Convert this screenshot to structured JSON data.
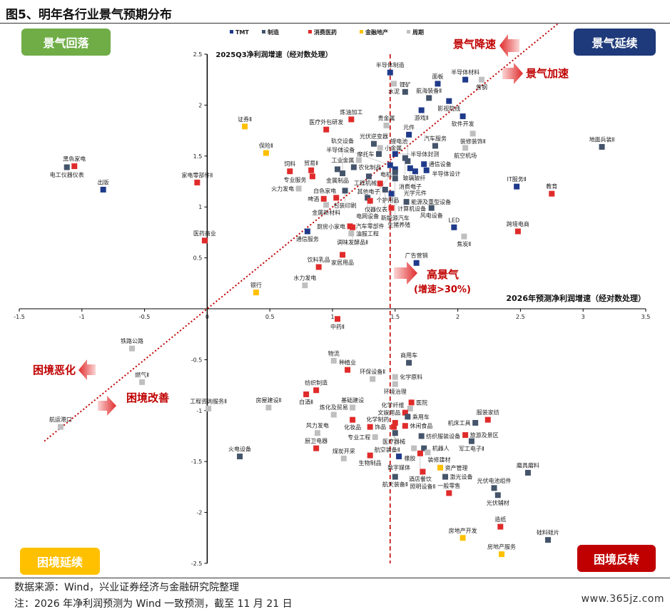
{
  "title": "图5、明年各行业景气预期分布",
  "quadrants": {
    "top_left": {
      "label": "景气回落",
      "color": "#70ad47"
    },
    "top_right": {
      "label": "景气延续",
      "color": "#1f3a7a"
    },
    "bottom_left": {
      "label": "困境延续",
      "color": "#ffc000"
    },
    "bottom_right": {
      "label": "困境反转",
      "color": "#c00000"
    }
  },
  "annotations": {
    "slow": "景气降速",
    "fast": "景气加速",
    "worse": "困境恶化",
    "better": "困境改善",
    "high": "高景气",
    "high_sub": "(增速>30%)"
  },
  "footer": {
    "source": "数据来源：Wind，兴业证券经济与金融研究院整理",
    "note": "注：2026 年净利润预测为 Wind 一致预测，截至 11 月 21 日"
  },
  "watermark": "www.365jz.com",
  "chart_data": {
    "type": "scatter",
    "xlabel": "2026年预测净利润增速（经对数处理）",
    "ylabel": "2025Q3净利润增速（经对数处理）",
    "xlim": [
      -1.5,
      3.5
    ],
    "ylim": [
      -2.5,
      2.5
    ],
    "xticks": [
      "-1.5",
      "-1",
      "-0.5",
      "0",
      "0.5",
      "1",
      "1.5",
      "2",
      "2.5",
      "3",
      "3.5"
    ],
    "yticks": [
      "2.5",
      "2",
      "1.5",
      "1",
      "0.5",
      "0",
      "-0.5",
      "-1",
      "-1.5",
      "-2",
      "-2.5"
    ],
    "reference_lines": {
      "vertical_x": 1.46,
      "diagonal": "y=x"
    },
    "grid": false,
    "legend_position": "top",
    "categories": [
      {
        "key": "tmt",
        "name": "TMT",
        "color": "#1f3a8a"
      },
      {
        "key": "mfg",
        "name": "制造",
        "color": "#44546a"
      },
      {
        "key": "con",
        "name": "消费医药",
        "color": "#e02b2b"
      },
      {
        "key": "fin",
        "name": "金融地产",
        "color": "#ffc000"
      },
      {
        "key": "cyc",
        "name": "周期",
        "color": "#bfbfbf"
      }
    ],
    "points": [
      {
        "n": "半导体制造",
        "c": "tmt",
        "x": 1.46,
        "y": 2.32
      },
      {
        "n": "水泥",
        "c": "cyc",
        "x": 1.49,
        "y": 2.21
      },
      {
        "n": "锂矿",
        "c": "mfg",
        "x": 1.58,
        "y": 2.13
      },
      {
        "n": "航海装备Ⅱ",
        "c": "mfg",
        "x": 1.77,
        "y": 2.07
      },
      {
        "n": "影视院线",
        "c": "tmt",
        "x": 1.93,
        "y": 2.04
      },
      {
        "n": "面板",
        "c": "tmt",
        "x": 1.84,
        "y": 2.21
      },
      {
        "n": "半导体材料",
        "c": "tmt",
        "x": 2.06,
        "y": 2.25
      },
      {
        "n": "普钢",
        "c": "cyc",
        "x": 2.19,
        "y": 2.25
      },
      {
        "n": "游戏Ⅱ",
        "c": "tmt",
        "x": 1.71,
        "y": 1.95
      },
      {
        "n": "软件开发",
        "c": "tmt",
        "x": 2.04,
        "y": 1.89
      },
      {
        "n": "贵金属",
        "c": "cyc",
        "x": 1.43,
        "y": 1.8
      },
      {
        "n": "炼油加工",
        "c": "con",
        "x": 1.15,
        "y": 1.86
      },
      {
        "n": "医疗外包研发",
        "c": "con",
        "x": 0.95,
        "y": 1.76
      },
      {
        "n": "元件",
        "c": "tmt",
        "x": 1.61,
        "y": 1.71
      },
      {
        "n": "装修装饰Ⅱ",
        "c": "cyc",
        "x": 2.12,
        "y": 1.72
      },
      {
        "n": "航空机场",
        "c": "cyc",
        "x": 2.06,
        "y": 1.58
      },
      {
        "n": "汽车服务",
        "c": "mfg",
        "x": 1.82,
        "y": 1.6
      },
      {
        "n": "光伏逆变器",
        "c": "mfg",
        "x": 1.33,
        "y": 1.62
      },
      {
        "n": "小金属",
        "c": "cyc",
        "x": 1.38,
        "y": 1.58
      },
      {
        "n": "摩托车",
        "c": "mfg",
        "x": 1.37,
        "y": 1.52
      },
      {
        "n": "半导体封测",
        "c": "tmt",
        "x": 1.5,
        "y": 1.52
      },
      {
        "n": "玻璃玻纤",
        "c": "mfg",
        "x": 1.58,
        "y": 1.48
      },
      {
        "n": "锂电池",
        "c": "mfg",
        "x": 1.6,
        "y": 1.45
      },
      {
        "n": "通信设备",
        "c": "tmt",
        "x": 1.73,
        "y": 1.42
      },
      {
        "n": "半导体设计",
        "c": "tmt",
        "x": 1.75,
        "y": 1.36
      },
      {
        "n": "消费电子",
        "c": "tmt",
        "x": 1.62,
        "y": 1.38
      },
      {
        "n": "光学元件",
        "c": "tmt",
        "x": 1.66,
        "y": 1.35
      },
      {
        "n": "工业金属",
        "c": "cyc",
        "x": 1.21,
        "y": 1.46
      },
      {
        "n": "金属制品",
        "c": "mfg",
        "x": 1.04,
        "y": 1.37
      },
      {
        "n": "农化制品",
        "c": "mfg",
        "x": 1.17,
        "y": 1.39
      },
      {
        "n": "半导体设备",
        "c": "tmt",
        "x": 1.46,
        "y": 1.41
      },
      {
        "n": "其他电子",
        "c": "tmt",
        "x": 1.5,
        "y": 1.37
      },
      {
        "n": "电机",
        "c": "mfg",
        "x": 1.5,
        "y": 1.34
      },
      {
        "n": "工程机械",
        "c": "mfg",
        "x": 1.29,
        "y": 1.3
      },
      {
        "n": "个护用品",
        "c": "con",
        "x": 1.38,
        "y": 1.23
      },
      {
        "n": "仪器仪表",
        "c": "mfg",
        "x": 1.42,
        "y": 1.17
      },
      {
        "n": "计算机设备",
        "c": "tmt",
        "x": 1.47,
        "y": 1.13
      },
      {
        "n": "新能源汽车",
        "c": "mfg",
        "x": 1.5,
        "y": 1.28
      },
      {
        "n": "白色家电",
        "c": "con",
        "x": 1.03,
        "y": 1.09
      },
      {
        "n": "啤酒",
        "c": "con",
        "x": 0.93,
        "y": 1.08
      },
      {
        "n": "电网设备",
        "c": "mfg",
        "x": 1.28,
        "y": 1.09
      },
      {
        "n": "包装印刷",
        "c": "mfg",
        "x": 1.1,
        "y": 1.16
      },
      {
        "n": "汽车零部件",
        "c": "con",
        "x": 1.3,
        "y": 1.06
      },
      {
        "n": "金属新材料",
        "c": "cyc",
        "x": 0.95,
        "y": 1.02
      },
      {
        "n": "火力发电",
        "c": "cyc",
        "x": 0.73,
        "y": 1.18
      },
      {
        "n": "专业服务",
        "c": "con",
        "x": 0.84,
        "y": 1.3
      },
      {
        "n": "贸易Ⅱ",
        "c": "con",
        "x": 0.83,
        "y": 1.36
      },
      {
        "n": "饲料",
        "c": "con",
        "x": 0.66,
        "y": 1.35
      },
      {
        "n": "轨交设备",
        "c": "mfg",
        "x": 1.08,
        "y": 1.33
      },
      {
        "n": "保险Ⅱ",
        "c": "fin",
        "x": 0.47,
        "y": 1.53
      },
      {
        "n": "生猪养殖",
        "c": "con",
        "x": 1.47,
        "y": 0.99
      },
      {
        "n": "能源及重型设备",
        "c": "mfg",
        "x": 1.59,
        "y": 1.05
      },
      {
        "n": "风电设备",
        "c": "mfg",
        "x": 1.79,
        "y": 0.99
      },
      {
        "n": "LED",
        "c": "tmt",
        "x": 1.97,
        "y": 0.8
      },
      {
        "n": "焦炭Ⅱ",
        "c": "cyc",
        "x": 2.05,
        "y": 0.71
      },
      {
        "n": "厨房小家电",
        "c": "con",
        "x": 1.14,
        "y": 0.81
      },
      {
        "n": "调味发酵品Ⅱ",
        "c": "con",
        "x": 1.16,
        "y": 0.8
      },
      {
        "n": "油服工程",
        "c": "cyc",
        "x": 1.15,
        "y": 0.74
      },
      {
        "n": "通信服务",
        "c": "tmt",
        "x": 0.8,
        "y": 0.76
      },
      {
        "n": "家居用品",
        "c": "con",
        "x": 1.08,
        "y": 0.53
      },
      {
        "n": "饮料乳品",
        "c": "con",
        "x": 0.89,
        "y": 0.41
      },
      {
        "n": "水力发电",
        "c": "cyc",
        "x": 0.78,
        "y": 0.23
      },
      {
        "n": "广告营销",
        "c": "tmt",
        "x": 1.67,
        "y": 0.45
      },
      {
        "n": "跨境电商",
        "c": "con",
        "x": 2.48,
        "y": 0.76
      },
      {
        "n": "教育",
        "c": "con",
        "x": 2.75,
        "y": 1.13
      },
      {
        "n": "IT服务Ⅱ",
        "c": "tmt",
        "x": 2.47,
        "y": 1.2
      },
      {
        "n": "地面兵装Ⅱ",
        "c": "mfg",
        "x": 3.15,
        "y": 1.59
      },
      {
        "n": "证券Ⅱ",
        "c": "fin",
        "x": 0.3,
        "y": 1.79
      },
      {
        "n": "银行",
        "c": "fin",
        "x": 0.39,
        "y": 0.16
      },
      {
        "n": "医药商业",
        "c": "con",
        "x": -0.02,
        "y": 0.67
      },
      {
        "n": "家电零部件Ⅱ",
        "c": "con",
        "x": -0.08,
        "y": 1.24
      },
      {
        "n": "黑色家电",
        "c": "con",
        "x": -1.06,
        "y": 1.4
      },
      {
        "n": "电工仪器仪表",
        "c": "mfg",
        "x": -1.12,
        "y": 1.39
      },
      {
        "n": "出版",
        "c": "tmt",
        "x": -0.83,
        "y": 1.17
      },
      {
        "n": "中药Ⅱ",
        "c": "con",
        "x": 1.04,
        "y": -0.1
      },
      {
        "n": "物流",
        "c": "cyc",
        "x": 1.01,
        "y": -0.51
      },
      {
        "n": "种植业",
        "c": "con",
        "x": 1.12,
        "y": -0.6
      },
      {
        "n": "环保设备Ⅱ",
        "c": "cyc",
        "x": 1.32,
        "y": -0.69
      },
      {
        "n": "商用车",
        "c": "mfg",
        "x": 1.61,
        "y": -0.53
      },
      {
        "n": "化学原料",
        "c": "cyc",
        "x": 1.5,
        "y": -0.67
      },
      {
        "n": "环境治理",
        "c": "cyc",
        "x": 1.5,
        "y": -0.74
      },
      {
        "n": "纺织制造",
        "c": "con",
        "x": 0.87,
        "y": -0.8
      },
      {
        "n": "白酒Ⅱ",
        "c": "con",
        "x": 0.79,
        "y": -0.84
      },
      {
        "n": "基础建设",
        "c": "cyc",
        "x": 1.16,
        "y": -0.97
      },
      {
        "n": "炼化及贸易",
        "c": "cyc",
        "x": 1.01,
        "y": -1.04
      },
      {
        "n": "医院",
        "c": "con",
        "x": 1.63,
        "y": -0.92
      },
      {
        "n": "化学纤维",
        "c": "cyc",
        "x": 1.62,
        "y": -0.98
      },
      {
        "n": "文娱用品",
        "c": "con",
        "x": 1.58,
        "y": -1.02
      },
      {
        "n": "乘用车",
        "c": "mfg",
        "x": 1.6,
        "y": -1.06
      },
      {
        "n": "化学制药",
        "c": "con",
        "x": 1.5,
        "y": -1.12
      },
      {
        "n": "化妆品",
        "c": "con",
        "x": 1.16,
        "y": -1.09
      },
      {
        "n": "饰品",
        "c": "con",
        "x": 1.3,
        "y": -1.16
      },
      {
        "n": "医疗器械",
        "c": "con",
        "x": 1.49,
        "y": -1.16
      },
      {
        "n": "休闲食品",
        "c": "con",
        "x": 1.58,
        "y": -1.15
      },
      {
        "n": "风力发电",
        "c": "cyc",
        "x": 0.88,
        "y": -1.22
      },
      {
        "n": "服装家纺",
        "c": "con",
        "x": 2.24,
        "y": -1.09
      },
      {
        "n": "机床工具",
        "c": "mfg",
        "x": 2.14,
        "y": -1.12
      },
      {
        "n": "旅游及景区",
        "c": "con",
        "x": 2.06,
        "y": -1.24
      },
      {
        "n": "军工电子Ⅱ",
        "c": "mfg",
        "x": 2.11,
        "y": -1.3
      },
      {
        "n": "航空装备Ⅱ",
        "c": "mfg",
        "x": 1.5,
        "y": -1.22
      },
      {
        "n": "纺织服装设备",
        "c": "mfg",
        "x": 1.71,
        "y": -1.25
      },
      {
        "n": "专业工程",
        "c": "cyc",
        "x": 1.34,
        "y": -1.26
      },
      {
        "n": "橡胶",
        "c": "cyc",
        "x": 1.65,
        "y": -1.37
      },
      {
        "n": "机器人",
        "c": "mfg",
        "x": 1.73,
        "y": -1.37
      },
      {
        "n": "数字媒体",
        "c": "tmt",
        "x": 1.53,
        "y": -1.45
      },
      {
        "n": "装修建材",
        "c": "cyc",
        "x": 1.76,
        "y": -1.41
      },
      {
        "n": "酒店餐饮",
        "c": "con",
        "x": 1.7,
        "y": -1.42
      },
      {
        "n": "厨卫电器",
        "c": "con",
        "x": 0.87,
        "y": -1.37
      },
      {
        "n": "煤炭开采",
        "c": "cyc",
        "x": 1.09,
        "y": -1.47
      },
      {
        "n": "生物制品",
        "c": "con",
        "x": 1.3,
        "y": -1.44
      },
      {
        "n": "照明设备Ⅱ",
        "c": "con",
        "x": 1.72,
        "y": -1.6
      },
      {
        "n": "资产管理",
        "c": "fin",
        "x": 1.86,
        "y": -1.56
      },
      {
        "n": "激光设备",
        "c": "mfg",
        "x": 1.9,
        "y": -1.65
      },
      {
        "n": "航天装备Ⅱ",
        "c": "mfg",
        "x": 1.5,
        "y": -1.65
      },
      {
        "n": "一般零售",
        "c": "con",
        "x": 1.93,
        "y": -1.81
      },
      {
        "n": "光伏电池组件",
        "c": "mfg",
        "x": 2.29,
        "y": -1.76
      },
      {
        "n": "光伏辅材",
        "c": "mfg",
        "x": 2.32,
        "y": -1.83
      },
      {
        "n": "磨具磨料",
        "c": "mfg",
        "x": 2.56,
        "y": -1.61
      },
      {
        "n": "造纸",
        "c": "con",
        "x": 2.34,
        "y": -2.14
      },
      {
        "n": "硅料硅片",
        "c": "mfg",
        "x": 2.72,
        "y": -2.27
      },
      {
        "n": "房地产开发",
        "c": "fin",
        "x": 2.04,
        "y": -2.25
      },
      {
        "n": "房地产服务",
        "c": "fin",
        "x": 2.35,
        "y": -2.41
      },
      {
        "n": "铁路公路",
        "c": "cyc",
        "x": -0.6,
        "y": -0.39
      },
      {
        "n": "燃气Ⅱ",
        "c": "cyc",
        "x": -0.52,
        "y": -0.72
      },
      {
        "n": "航运港口",
        "c": "cyc",
        "x": -1.17,
        "y": -1.16
      },
      {
        "n": "工程咨询服务Ⅱ",
        "c": "cyc",
        "x": 0.01,
        "y": -0.98
      },
      {
        "n": "房屋建设Ⅱ",
        "c": "cyc",
        "x": 0.49,
        "y": -0.97
      },
      {
        "n": "火电设备",
        "c": "mfg",
        "x": 0.26,
        "y": -1.45
      }
    ]
  }
}
